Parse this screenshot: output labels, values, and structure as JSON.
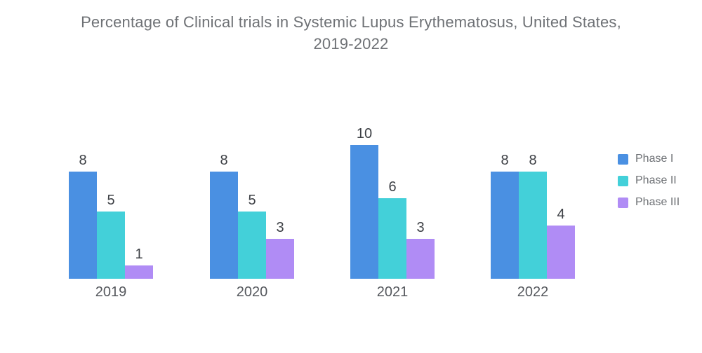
{
  "page": {
    "background": "#ffffff"
  },
  "chart_data": {
    "type": "bar",
    "title": "Percentage of Clinical trials in Systemic Lupus Erythematosus, United States, 2019-2022",
    "categories": [
      "2019",
      "2020",
      "2021",
      "2022"
    ],
    "series": [
      {
        "name": "Phase I",
        "color": "#4A90E2",
        "values": [
          8,
          8,
          10,
          8
        ]
      },
      {
        "name": "Phase II",
        "color": "#43D0D9",
        "values": [
          5,
          5,
          6,
          8
        ]
      },
      {
        "name": "Phase III",
        "color": "#B08CF5",
        "values": [
          1,
          3,
          3,
          4
        ]
      }
    ],
    "value_labels": true,
    "grid": false,
    "axis_lines": false,
    "legend_position": "right",
    "xlabel": "",
    "ylabel": "",
    "ylim": [
      0,
      10
    ],
    "text_colors": {
      "title": "#6E7175",
      "value_label": "#3D4045",
      "category_label": "#55585D",
      "legend_label": "#6E7175"
    }
  }
}
